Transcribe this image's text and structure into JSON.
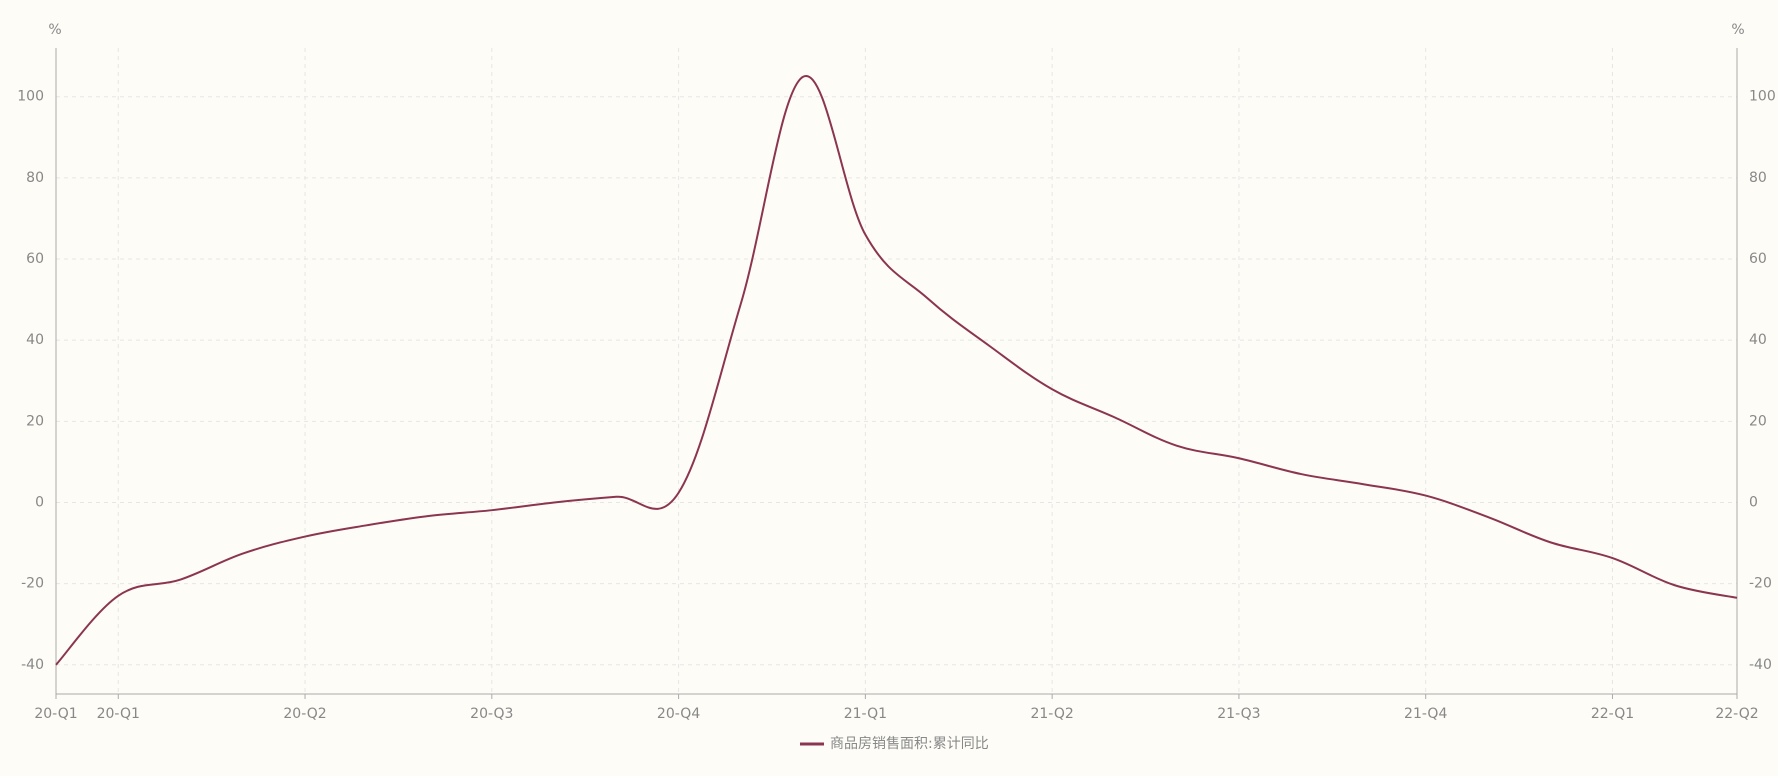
{
  "chart_data": {
    "type": "line",
    "y_unit": "%",
    "categories": [
      "20-Q1",
      "20-Q1",
      null,
      null,
      "20-Q2",
      null,
      null,
      "20-Q3",
      null,
      null,
      "20-Q4",
      null,
      null,
      "21-Q1",
      null,
      null,
      "21-Q2",
      null,
      null,
      "21-Q3",
      null,
      null,
      "21-Q4",
      null,
      null,
      "22-Q1",
      null,
      "22-Q2"
    ],
    "series": [
      {
        "name": "商品房销售面积:累计同比",
        "color": "#8b3550",
        "values": [
          -40,
          -23,
          -19,
          -12.6,
          -8.4,
          -5.6,
          -3.3,
          -1.9,
          0,
          1.4,
          2.4,
          49,
          104.9,
          66,
          50.3,
          38.5,
          27.9,
          21,
          14,
          10.9,
          7,
          4.5,
          1.7,
          -3.6,
          -9.8,
          -13.7,
          -20.4,
          -23.5
        ]
      }
    ],
    "ylim": [
      -47.2,
      112
    ],
    "yticks": [
      -40,
      -20,
      0,
      20,
      40,
      60,
      80,
      100
    ],
    "grid": true
  }
}
